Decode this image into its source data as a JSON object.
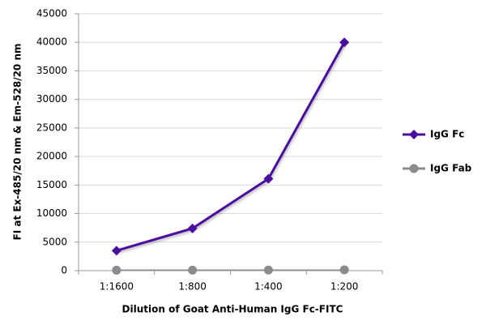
{
  "chart_data": {
    "type": "line",
    "x_label": "Dilution of Goat Anti-Human IgG Fc-FITC",
    "y_label": "FI at Ex-485/20 nm & Em-528/20 nm",
    "categories": [
      "1:1600",
      "1:800",
      "1:400",
      "1:200"
    ],
    "series": [
      {
        "name": "IgG Fc",
        "color": "#4b0fa0",
        "marker": "diamond",
        "values": [
          3500,
          7400,
          16100,
          40000
        ]
      },
      {
        "name": "IgG Fab",
        "color": "#8c8c8c",
        "marker": "circle",
        "values": [
          80,
          90,
          100,
          150
        ]
      }
    ],
    "ylim": [
      0,
      45000
    ],
    "yticks": [
      0,
      5000,
      10000,
      15000,
      20000,
      25000,
      30000,
      35000,
      40000,
      45000
    ],
    "grid": true,
    "legend": "right"
  }
}
